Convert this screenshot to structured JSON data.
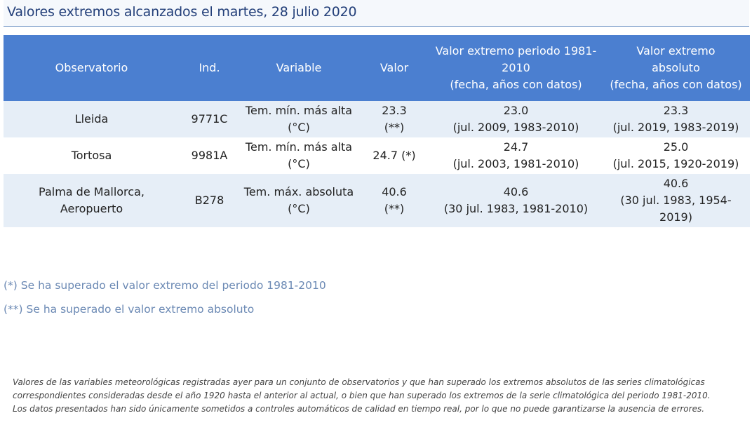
{
  "title": "Valores extremos alcanzados el martes, 28 julio 2020",
  "table": {
    "headers": {
      "observatorio": "Observatorio",
      "ind": "Ind.",
      "variable": "Variable",
      "valor": "Valor",
      "periodo": [
        "Valor extremo periodo 1981-",
        "2010",
        "(fecha, años con datos)"
      ],
      "absoluto": [
        "Valor extremo",
        "absoluto",
        "(fecha, años con datos)"
      ]
    },
    "rows": [
      {
        "observatorio": [
          "Lleida"
        ],
        "ind": "9771C",
        "variable": [
          "Tem. mín. más alta",
          "(°C)"
        ],
        "valor": [
          "23.3",
          "(**)"
        ],
        "periodo": [
          "23.0",
          "(jul. 2009, 1983-2010)"
        ],
        "absoluto": [
          "23.3",
          "(jul. 2019, 1983-2019)"
        ]
      },
      {
        "observatorio": [
          "Tortosa"
        ],
        "ind": "9981A",
        "variable": [
          "Tem. mín. más alta",
          "(°C)"
        ],
        "valor": [
          "24.7 (*)"
        ],
        "periodo": [
          "24.7",
          "(jul. 2003, 1981-2010)"
        ],
        "absoluto": [
          "25.0",
          "(jul. 2015, 1920-2019)"
        ]
      },
      {
        "observatorio": [
          "Palma de Mallorca,",
          "Aeropuerto"
        ],
        "ind": "B278",
        "variable": [
          "Tem. máx. absoluta",
          "(°C)"
        ],
        "valor": [
          "40.6",
          "(**)"
        ],
        "periodo": [
          "40.6",
          "(30 jul. 1983, 1981-2010)"
        ],
        "absoluto": [
          "40.6",
          "(30 jul. 1983, 1954-",
          "2019)"
        ]
      }
    ]
  },
  "notes": [
    "(*) Se ha superado el valor extremo del periodo 1981-2010",
    "(**) Se ha superado el valor extremo absoluto"
  ],
  "disclaimer": [
    "Valores de las variables meteorológicas registradas ayer para un conjunto de observatorios y que han superado los extremos absolutos de las series climatológicas",
    "correspondientes consideradas desde el año 1920 hasta el anterior al actual, o bien que han superado los extremos de la serie climatológica del periodo 1981-2010.",
    "Los datos presentados han sido únicamente sometidos a controles automáticos de calidad en tiempo real, por lo que no puede garantizarse la ausencia de errores."
  ]
}
